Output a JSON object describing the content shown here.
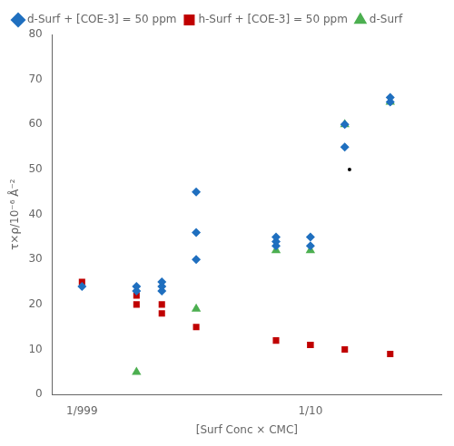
{
  "chart_data": {
    "type": "scatter",
    "xlabel": "[Surf Conc × CMC]",
    "ylabel": "τ×ρ/10⁻⁶ Å⁻²",
    "log": "x",
    "xlim": [
      0.00055,
      1.4
    ],
    "xticks": [
      {
        "value": 0.001,
        "label": "1/999"
      },
      {
        "value": 0.1,
        "label": "1/10"
      }
    ],
    "ylim": [
      0,
      80
    ],
    "yticks": [
      0,
      10,
      20,
      30,
      40,
      50,
      60,
      70,
      80
    ],
    "grid": false,
    "legend": "upper left",
    "series": [
      {
        "name": "d-Surf + [COE-3] = 50 ppm",
        "color": "#1F6FBF",
        "marker": "diamond",
        "x": [
          0.001,
          0.003,
          0.003,
          0.005,
          0.005,
          0.005,
          0.01,
          0.01,
          0.01,
          0.05,
          0.05,
          0.05,
          0.1,
          0.1,
          0.2,
          0.2,
          0.5,
          0.5
        ],
        "values": [
          24,
          23,
          24,
          23,
          24,
          25,
          30,
          36,
          45,
          33,
          34,
          35,
          33,
          35,
          55,
          60,
          65,
          66
        ]
      },
      {
        "name": "h-Surf + [COE-3] = 50 ppm",
        "color": "#C00000",
        "marker": "square",
        "x": [
          0.001,
          0.003,
          0.003,
          0.005,
          0.005,
          0.01,
          0.05,
          0.1,
          0.1,
          0.2,
          0.5
        ],
        "values": [
          25,
          20,
          22,
          20,
          18,
          15,
          12,
          11,
          11,
          10,
          9
        ]
      },
      {
        "name": "d-Surf",
        "color": "#4CAF50",
        "marker": "triangle",
        "x": [
          0.003,
          0.01,
          0.05,
          0.1,
          0.2,
          0.5
        ],
        "values": [
          5,
          19,
          32,
          32,
          60,
          65
        ]
      },
      {
        "color": "black",
        "marker": "dot",
        "x": [
          0.22
        ],
        "values": [
          50
        ]
      }
    ]
  }
}
